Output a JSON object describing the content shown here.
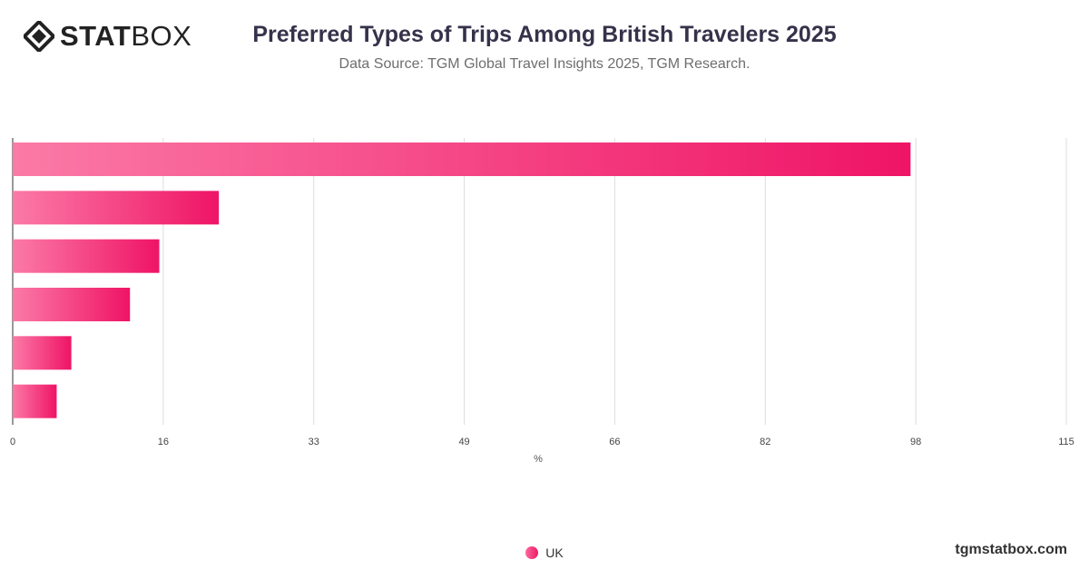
{
  "header": {
    "logo_bold": "STAT",
    "logo_light": "BOX",
    "title": "Preferred Types of Trips Among British Travelers 2025",
    "subtitle": "Data Source: TGM Global Travel Insights 2025, TGM Research."
  },
  "footer": {
    "watermark": "tgmstatbox.com"
  },
  "colors": {
    "bar_start": "#fb7aa6",
    "bar_end": "#ef1466",
    "title": "#35324a",
    "grid": "#dddddd"
  },
  "chart_data": {
    "type": "bar",
    "orientation": "horizontal",
    "title": "Preferred Types of Trips Among British Travelers 2025",
    "xlabel": "%",
    "ylabel": "",
    "xlim": [
      0,
      115
    ],
    "x_ticks": [
      "0",
      "16",
      "33",
      "49",
      "66",
      "82",
      "98",
      "115"
    ],
    "grid": true,
    "legend_position": "bottom-center",
    "series": [
      {
        "name": "UK",
        "values": [
          98,
          22.5,
          16,
          12.8,
          6.4,
          4.8
        ]
      }
    ]
  }
}
